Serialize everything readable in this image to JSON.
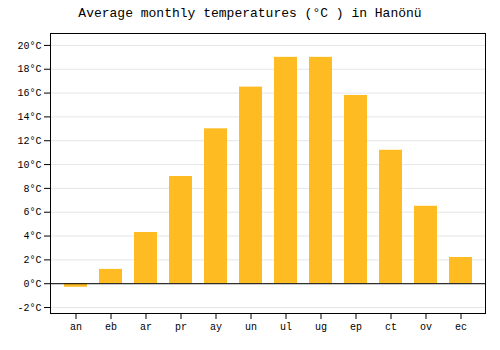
{
  "chart_data": {
    "type": "bar",
    "title": "Average monthly temperatures (°C ) in Hanönü",
    "categories": [
      "an",
      "eb",
      "ar",
      "pr",
      "ay",
      "un",
      "ul",
      "ug",
      "ep",
      "ct",
      "ov",
      "ec"
    ],
    "values": [
      -0.3,
      1.2,
      4.3,
      9.0,
      13.0,
      16.5,
      19.0,
      19.0,
      15.8,
      11.2,
      6.5,
      2.2
    ],
    "color": "#FFBB22",
    "ylim": [
      -2.5,
      21
    ],
    "yticks": [
      {
        "value": -2,
        "label": "-2°C"
      },
      {
        "value": 0,
        "label": "0°C"
      },
      {
        "value": 2,
        "label": "2°C"
      },
      {
        "value": 4,
        "label": "4°C"
      },
      {
        "value": 6,
        "label": "6°C"
      },
      {
        "value": 8,
        "label": "8°C"
      },
      {
        "value": 10,
        "label": "10°C"
      },
      {
        "value": 12,
        "label": "12°C"
      },
      {
        "value": 14,
        "label": "14°C"
      },
      {
        "value": 16,
        "label": "16°C"
      },
      {
        "value": 18,
        "label": "18°C"
      },
      {
        "value": 20,
        "label": "20°C"
      }
    ],
    "grid": true
  }
}
